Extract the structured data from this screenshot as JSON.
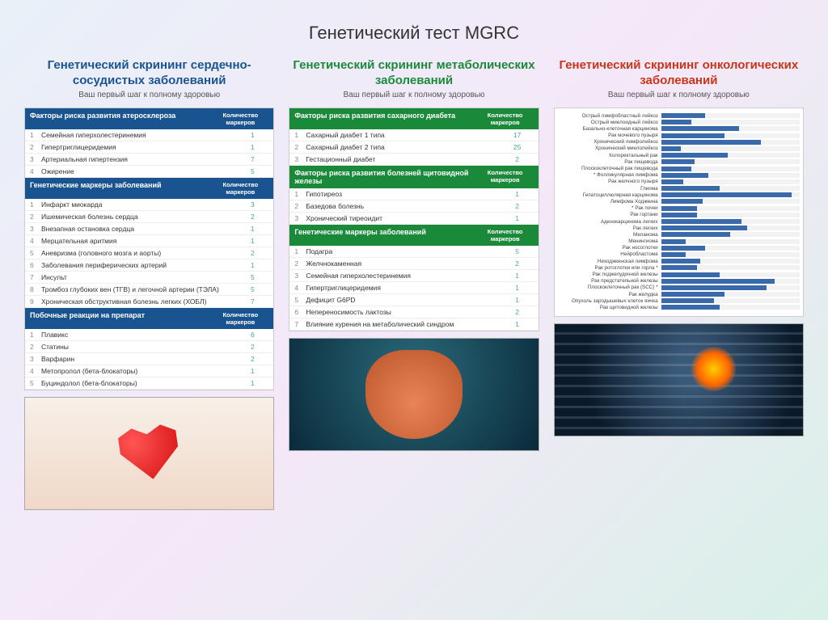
{
  "page_title": "Генетический тест MGRC",
  "columns": [
    {
      "title": "Генетический скрининг сердечно-сосудистых заболеваний",
      "subtitle": "Ваш первый шаг к полному здоровью",
      "title_color": "#1a5490",
      "header_bg": "#1a5490",
      "sections": [
        {
          "header": "Факторы риска развития атеросклероза",
          "header_right": "Количество маркеров",
          "rows": [
            {
              "idx": "1",
              "label": "Семейная гиперхолестеринемия",
              "val": "1"
            },
            {
              "idx": "2",
              "label": "Гипертриглицеридемия",
              "val": "1"
            },
            {
              "idx": "3",
              "label": "Артериальная гипертензия",
              "val": "7"
            },
            {
              "idx": "4",
              "label": "Ожирение",
              "val": "5"
            }
          ]
        },
        {
          "header": "Генетические маркеры заболеваний",
          "header_right": "Количество маркеров",
          "rows": [
            {
              "idx": "1",
              "label": "Инфаркт миокарда",
              "val": "3"
            },
            {
              "idx": "2",
              "label": "Ишемическая болезнь сердца",
              "val": "2"
            },
            {
              "idx": "3",
              "label": "Внезапная остановка сердца",
              "val": "1"
            },
            {
              "idx": "4",
              "label": "Мерцательная аритмия",
              "val": "1"
            },
            {
              "idx": "5",
              "label": "Аневризма (головного мозга и аорты)",
              "val": "2"
            },
            {
              "idx": "6",
              "label": "Заболевания периферических артерий",
              "val": "1"
            },
            {
              "idx": "7",
              "label": "Инсульт",
              "val": "5"
            },
            {
              "idx": "8",
              "label": "Тромбоз глубоких вен (ТГВ) и легочной артерии (ТЭЛА)",
              "val": "5"
            },
            {
              "idx": "9",
              "label": "Хроническая обструктивная болезнь легких (ХОБЛ)",
              "val": "7"
            }
          ]
        },
        {
          "header": "Побочные реакции на препарат",
          "header_right": "Количество маркеров",
          "rows": [
            {
              "idx": "1",
              "label": "Плавикс",
              "val": "6"
            },
            {
              "idx": "2",
              "label": "Статины",
              "val": "2"
            },
            {
              "idx": "3",
              "label": "Варфарин",
              "val": "2"
            },
            {
              "idx": "4",
              "label": "Метопролол (бета-блокаторы)",
              "val": "1"
            },
            {
              "idx": "5",
              "label": "Буциндолол (бета-блокаторы)",
              "val": "1"
            }
          ]
        }
      ],
      "image": "heart"
    },
    {
      "title": "Генетический скрининг метаболических заболеваний",
      "subtitle": "Ваш первый шаг к полному здоровью",
      "title_color": "#1a8a3a",
      "header_bg": "#1a8a3a",
      "sections": [
        {
          "header": "Факторы риска развития сахарного диабета",
          "header_right": "Количество маркеров",
          "rows": [
            {
              "idx": "1",
              "label": "Сахарный диабет 1 типа",
              "val": "17"
            },
            {
              "idx": "2",
              "label": "Сахарный диабет 2 типа",
              "val": "25"
            },
            {
              "idx": "3",
              "label": "Гестационный диабет",
              "val": "2"
            }
          ]
        },
        {
          "header": "Факторы риска развития болезней щитовидной железы",
          "header_right": "Количество маркеров",
          "rows": [
            {
              "idx": "1",
              "label": "Гипотиреоз",
              "val": "1"
            },
            {
              "idx": "2",
              "label": "Базедова болезнь",
              "val": "2"
            },
            {
              "idx": "3",
              "label": "Хронический тиреоидит",
              "val": "1"
            }
          ]
        },
        {
          "header": "Генетические маркеры заболеваний",
          "header_right": "Количество маркеров",
          "rows": [
            {
              "idx": "1",
              "label": "Подагра",
              "val": "5"
            },
            {
              "idx": "2",
              "label": "Желчнокаменная",
              "val": "2"
            },
            {
              "idx": "3",
              "label": "Семейная гиперхолестеринемия",
              "val": "1"
            },
            {
              "idx": "4",
              "label": "Гипертриглицеридемия",
              "val": "1"
            },
            {
              "idx": "5",
              "label": "Дефицит G6PD",
              "val": "1"
            },
            {
              "idx": "6",
              "label": "Непереносимость лактозы",
              "val": "2"
            },
            {
              "idx": "7",
              "label": "Влияние курения на метаболический синдром",
              "val": "1"
            }
          ]
        }
      ],
      "image": "gi"
    },
    {
      "title": "Генетический скрининг онкологических заболеваний",
      "subtitle": "Ваш первый шаг к полному здоровью",
      "title_color": "#c8351a",
      "bar_chart": {
        "bar_color": "#3a6aaa",
        "max": 100,
        "items": [
          {
            "label": "Острый лимфобластный лейкоз",
            "value": 32
          },
          {
            "label": "Острый миелоидный лейкоз",
            "value": 22
          },
          {
            "label": "Базально-клеточная карцинома",
            "value": 56
          },
          {
            "label": "Рак мочевого пузыря",
            "value": 46
          },
          {
            "label": "Хронический лимфолейкоз",
            "value": 72
          },
          {
            "label": "Хронический миелолейкоз",
            "value": 14
          },
          {
            "label": "Колоректальный рак",
            "value": 48
          },
          {
            "label": "Рак пищевода",
            "value": 24
          },
          {
            "label": "Плоскоклеточный рак пищевода",
            "value": 22
          },
          {
            "label": "* Фолликулярная лимфома",
            "value": 34
          },
          {
            "label": "Рак желчного пузыря",
            "value": 16
          },
          {
            "label": "Глиома",
            "value": 42
          },
          {
            "label": "Гепатоцеллюлярная карцинома",
            "value": 94
          },
          {
            "label": "Лимфома Ходжкина",
            "value": 30
          },
          {
            "label": "* Рак почки",
            "value": 26
          },
          {
            "label": "Рак гортани",
            "value": 26
          },
          {
            "label": "Аденокарцинома легких",
            "value": 58
          },
          {
            "label": "Рак легких",
            "value": 62
          },
          {
            "label": "Меланома",
            "value": 50
          },
          {
            "label": "Менингиома",
            "value": 18
          },
          {
            "label": "Рак носоглотки",
            "value": 32
          },
          {
            "label": "Нейробластома",
            "value": 18
          },
          {
            "label": "Неходжкинская лимфома",
            "value": 28
          },
          {
            "label": "Рак ротоглотки или горла *",
            "value": 26
          },
          {
            "label": "Рак поджелудочной железы",
            "value": 42
          },
          {
            "label": "Рак предстательной железы",
            "value": 82
          },
          {
            "label": "Плоскоклеточный рак (SCC) *",
            "value": 76
          },
          {
            "label": "Рак желудка",
            "value": 46
          },
          {
            "label": "Опухоль зародышевых клеток яичка",
            "value": 38
          },
          {
            "label": "Рак щитовидной железы",
            "value": 42
          }
        ]
      },
      "image": "lung"
    }
  ]
}
